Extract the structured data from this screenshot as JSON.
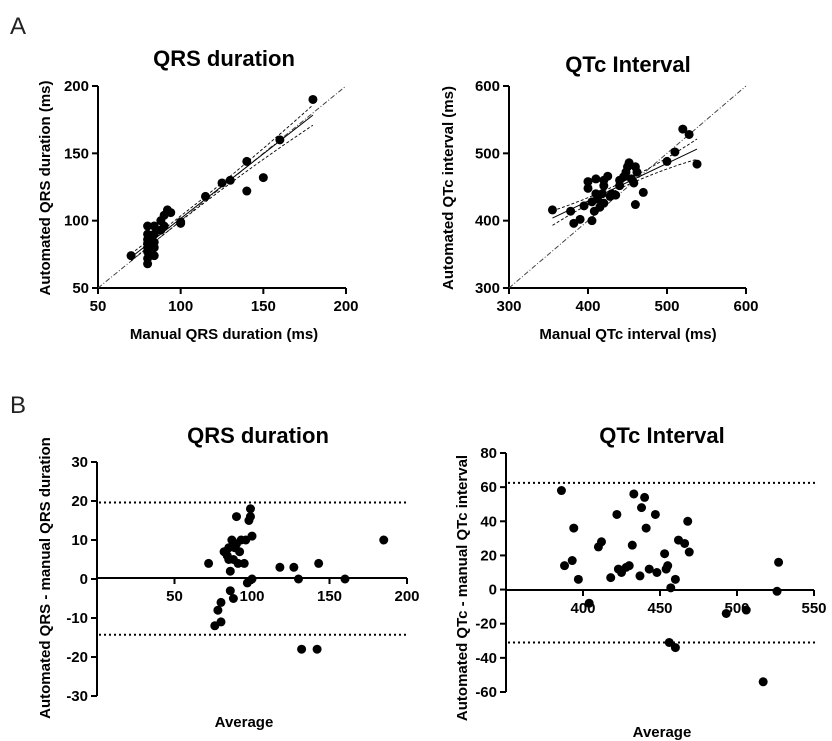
{
  "panels": {
    "a": "A",
    "b": "B"
  },
  "chart_data": [
    {
      "id": "qrs-scatter",
      "type": "scatter",
      "title": "QRS duration",
      "xlabel": "Manual QRS duration (ms)",
      "ylabel": "Automated QRS duration (ms)",
      "xlim": [
        50,
        200
      ],
      "ylim": [
        50,
        200
      ],
      "xticks": [
        50,
        100,
        150,
        200
      ],
      "yticks": [
        50,
        100,
        150,
        200
      ],
      "identity_line": true,
      "regression": {
        "slope": 0.96,
        "intercept": 5.6
      },
      "points": [
        [
          70,
          74
        ],
        [
          80,
          68
        ],
        [
          80,
          72
        ],
        [
          80,
          77
        ],
        [
          80,
          80
        ],
        [
          80,
          83
        ],
        [
          80,
          86
        ],
        [
          80,
          90
        ],
        [
          80,
          96
        ],
        [
          84,
          74
        ],
        [
          84,
          80
        ],
        [
          84,
          84
        ],
        [
          84,
          90
        ],
        [
          84,
          96
        ],
        [
          88,
          93
        ],
        [
          88,
          100
        ],
        [
          90,
          96
        ],
        [
          90,
          104
        ],
        [
          92,
          108
        ],
        [
          94,
          106
        ],
        [
          100,
          99
        ],
        [
          100,
          98
        ],
        [
          115,
          118
        ],
        [
          125,
          128
        ],
        [
          130,
          130
        ],
        [
          140,
          122
        ],
        [
          140,
          144
        ],
        [
          150,
          132
        ],
        [
          160,
          160
        ],
        [
          180,
          190
        ]
      ]
    },
    {
      "id": "qtc-scatter",
      "type": "scatter",
      "title": "QTc Interval",
      "xlabel": "Manual QTc interval (ms)",
      "ylabel": "Automated QTc interval (ms)",
      "xlim": [
        300,
        600
      ],
      "ylim": [
        300,
        600
      ],
      "xticks": [
        300,
        400,
        500,
        600
      ],
      "yticks": [
        300,
        400,
        500,
        600
      ],
      "identity_line": true,
      "regression": {
        "slope": 0.56,
        "intercept": 205
      },
      "points": [
        [
          355,
          416
        ],
        [
          378,
          414
        ],
        [
          382,
          396
        ],
        [
          390,
          402
        ],
        [
          395,
          422
        ],
        [
          400,
          448
        ],
        [
          400,
          458
        ],
        [
          405,
          400
        ],
        [
          405,
          428
        ],
        [
          408,
          414
        ],
        [
          410,
          440
        ],
        [
          410,
          462
        ],
        [
          412,
          432
        ],
        [
          415,
          420
        ],
        [
          418,
          440
        ],
        [
          420,
          426
        ],
        [
          420,
          452
        ],
        [
          420,
          460
        ],
        [
          425,
          466
        ],
        [
          428,
          436
        ],
        [
          430,
          440
        ],
        [
          435,
          438
        ],
        [
          440,
          452
        ],
        [
          440,
          460
        ],
        [
          445,
          465
        ],
        [
          448,
          472
        ],
        [
          450,
          480
        ],
        [
          452,
          486
        ],
        [
          455,
          462
        ],
        [
          458,
          456
        ],
        [
          460,
          424
        ],
        [
          460,
          480
        ],
        [
          462,
          472
        ],
        [
          470,
          442
        ],
        [
          500,
          488
        ],
        [
          510,
          502
        ],
        [
          520,
          536
        ],
        [
          528,
          528
        ],
        [
          538,
          484
        ]
      ]
    },
    {
      "id": "qrs-bland-altman",
      "type": "scatter",
      "title": "QRS duration",
      "xlabel": "Average",
      "ylabel": "Automated QRS - manual QRS duration",
      "xlim": [
        0,
        200
      ],
      "ylim": [
        -30,
        30
      ],
      "xticks": [
        50,
        100,
        150,
        200
      ],
      "yticks": [
        -30,
        -20,
        -10,
        0,
        10,
        20,
        30
      ],
      "limits_of_agreement": [
        19.6,
        -14.3
      ],
      "points": [
        [
          72,
          4
        ],
        [
          76,
          -12
        ],
        [
          78,
          -8
        ],
        [
          80,
          -6
        ],
        [
          80,
          -11
        ],
        [
          82,
          7
        ],
        [
          84,
          6
        ],
        [
          85,
          8
        ],
        [
          85,
          5
        ],
        [
          86,
          -3
        ],
        [
          86,
          2
        ],
        [
          87,
          10
        ],
        [
          88,
          -5
        ],
        [
          88,
          5
        ],
        [
          89,
          8
        ],
        [
          90,
          9
        ],
        [
          90,
          16
        ],
        [
          91,
          4
        ],
        [
          92,
          7
        ],
        [
          93,
          10
        ],
        [
          95,
          4
        ],
        [
          96,
          10
        ],
        [
          97,
          -1
        ],
        [
          98,
          15
        ],
        [
          99,
          18
        ],
        [
          99,
          16
        ],
        [
          100,
          0
        ],
        [
          100,
          11
        ],
        [
          118,
          3
        ],
        [
          127,
          3
        ],
        [
          130,
          0
        ],
        [
          132,
          -18
        ],
        [
          142,
          -18
        ],
        [
          143,
          4
        ],
        [
          160,
          0
        ],
        [
          185,
          10
        ]
      ]
    },
    {
      "id": "qtc-bland-altman",
      "type": "scatter",
      "title": "QTc Interval",
      "xlabel": "Average",
      "ylabel": "Automated QTc - manual QTc interval",
      "xlim": [
        350,
        550
      ],
      "ylim": [
        -60,
        80
      ],
      "xticks": [
        400,
        450,
        500,
        550
      ],
      "yticks": [
        -60,
        -40,
        -20,
        0,
        20,
        40,
        60,
        80
      ],
      "limits_of_agreement": [
        62.5,
        -31
      ],
      "points": [
        [
          386,
          58
        ],
        [
          388,
          14
        ],
        [
          393,
          17
        ],
        [
          394,
          36
        ],
        [
          397,
          6
        ],
        [
          404,
          -8
        ],
        [
          410,
          25
        ],
        [
          412,
          28
        ],
        [
          418,
          7
        ],
        [
          422,
          44
        ],
        [
          423,
          12
        ],
        [
          425,
          10
        ],
        [
          428,
          13
        ],
        [
          430,
          14
        ],
        [
          432,
          26
        ],
        [
          433,
          56
        ],
        [
          437,
          8
        ],
        [
          438,
          48
        ],
        [
          440,
          54
        ],
        [
          441,
          36
        ],
        [
          443,
          12
        ],
        [
          447,
          44
        ],
        [
          448,
          10
        ],
        [
          453,
          21
        ],
        [
          454,
          12
        ],
        [
          455,
          14
        ],
        [
          457,
          1
        ],
        [
          460,
          6
        ],
        [
          462,
          29
        ],
        [
          466,
          27
        ],
        [
          469,
          22
        ],
        [
          493,
          -14
        ],
        [
          506,
          -12
        ],
        [
          526,
          -1
        ],
        [
          527,
          16
        ],
        [
          456,
          -31
        ],
        [
          460,
          -34
        ],
        [
          468,
          40
        ],
        [
          517,
          -54
        ]
      ]
    }
  ]
}
